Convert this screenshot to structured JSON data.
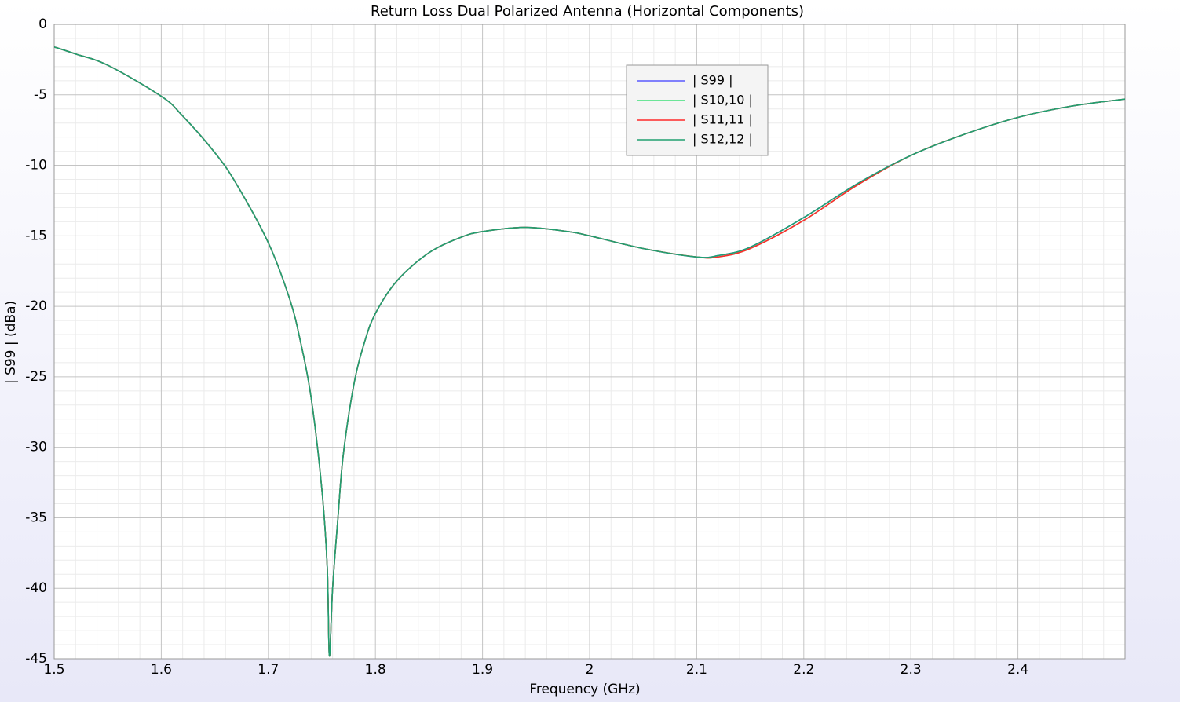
{
  "chart_data": {
    "type": "line",
    "title": "Return Loss Dual Polarized Antenna (Horizontal Components)",
    "x_label": "Frequency (GHz)",
    "y_label": "| S99 | (dBa)",
    "x": [
      1.5,
      1.52,
      1.55,
      1.6,
      1.62,
      1.65,
      1.67,
      1.7,
      1.72,
      1.73,
      1.74,
      1.75,
      1.755,
      1.757,
      1.76,
      1.765,
      1.77,
      1.78,
      1.79,
      1.8,
      1.82,
      1.85,
      1.88,
      1.9,
      1.94,
      1.98,
      2.0,
      2.05,
      2.1,
      2.12,
      2.15,
      2.2,
      2.25,
      2.3,
      2.35,
      2.4,
      2.45,
      2.5
    ],
    "series": [
      {
        "name": "| S99 |",
        "color": "#5a5aff",
        "values": [
          -1.6,
          -2.1,
          -2.9,
          -5.1,
          -6.5,
          -9.1,
          -11.3,
          -15.5,
          -19.5,
          -22.5,
          -26.5,
          -33,
          -38.5,
          -44.8,
          -40,
          -35,
          -30.5,
          -25.5,
          -22.5,
          -20.5,
          -18.2,
          -16.2,
          -15.1,
          -14.7,
          -14.4,
          -14.7,
          -15.0,
          -15.9,
          -16.5,
          -16.4,
          -15.8,
          -13.7,
          -11.3,
          -9.3,
          -7.8,
          -6.6,
          -5.8,
          -5.3
        ]
      },
      {
        "name": "| S10,10 |",
        "color": "#3ee07a",
        "values": [
          -1.6,
          -2.1,
          -2.9,
          -5.1,
          -6.5,
          -9.1,
          -11.3,
          -15.5,
          -19.5,
          -22.5,
          -26.5,
          -33,
          -38.5,
          -44.8,
          -40,
          -35,
          -30.5,
          -25.5,
          -22.5,
          -20.5,
          -18.2,
          -16.2,
          -15.1,
          -14.7,
          -14.4,
          -14.7,
          -15.0,
          -15.9,
          -16.5,
          -16.5,
          -15.9,
          -13.9,
          -11.4,
          -9.3,
          -7.8,
          -6.6,
          -5.8,
          -5.3
        ]
      },
      {
        "name": "| S11,11 |",
        "color": "#ff2a2a",
        "values": [
          -1.6,
          -2.1,
          -2.9,
          -5.1,
          -6.5,
          -9.1,
          -11.3,
          -15.5,
          -19.5,
          -22.5,
          -26.5,
          -33,
          -38.5,
          -44.8,
          -40,
          -35,
          -30.5,
          -25.5,
          -22.5,
          -20.5,
          -18.2,
          -16.2,
          -15.1,
          -14.7,
          -14.4,
          -14.7,
          -15.0,
          -15.9,
          -16.5,
          -16.5,
          -15.9,
          -13.9,
          -11.4,
          -9.3,
          -7.8,
          -6.6,
          -5.8,
          -5.3
        ]
      },
      {
        "name": "| S12,12 |",
        "color": "#20a070",
        "values": [
          -1.6,
          -2.1,
          -2.9,
          -5.1,
          -6.5,
          -9.1,
          -11.3,
          -15.5,
          -19.5,
          -22.5,
          -26.5,
          -33,
          -38.5,
          -44.8,
          -40,
          -35,
          -30.5,
          -25.5,
          -22.5,
          -20.5,
          -18.2,
          -16.2,
          -15.1,
          -14.7,
          -14.4,
          -14.7,
          -15.0,
          -15.9,
          -16.5,
          -16.4,
          -15.8,
          -13.7,
          -11.3,
          -9.3,
          -7.8,
          -6.6,
          -5.8,
          -5.3
        ]
      }
    ],
    "xlim": [
      1.5,
      2.5
    ],
    "ylim": [
      -45,
      0
    ],
    "xticks": [
      1.5,
      1.6,
      1.7,
      1.8,
      1.9,
      2,
      2.1,
      2.2,
      2.3,
      2.4
    ],
    "yticks": [
      0,
      -5,
      -10,
      -15,
      -20,
      -25,
      -30,
      -35,
      -40,
      -45
    ],
    "xminorticks": [
      1.52,
      1.54,
      1.56,
      1.58,
      1.62,
      1.64,
      1.66,
      1.68,
      1.72,
      1.74,
      1.76,
      1.78,
      1.82,
      1.84,
      1.86,
      1.88,
      1.92,
      1.94,
      1.96,
      1.98,
      2.02,
      2.04,
      2.06,
      2.08,
      2.12,
      2.14,
      2.16,
      2.18,
      2.22,
      2.24,
      2.26,
      2.28,
      2.32,
      2.34,
      2.36,
      2.38,
      2.42,
      2.44,
      2.46,
      2.48
    ],
    "yminorticks": [
      -1,
      -2,
      -3,
      -4,
      -6,
      -7,
      -8,
      -9,
      -11,
      -12,
      -13,
      -14,
      -16,
      -17,
      -18,
      -19,
      -21,
      -22,
      -23,
      -24,
      -26,
      -27,
      -28,
      -29,
      -31,
      -32,
      -33,
      -34,
      -36,
      -37,
      -38,
      -39,
      -41,
      -42,
      -43,
      -44
    ],
    "grid": true,
    "legend": "top-right"
  }
}
